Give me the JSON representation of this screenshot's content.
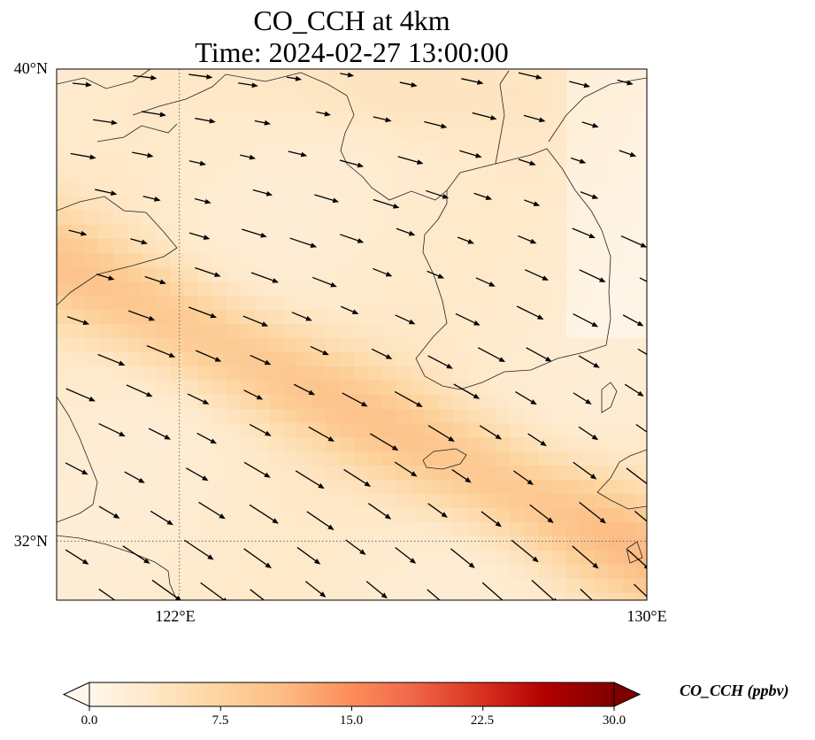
{
  "title": {
    "line1": "CO_CCH at 4km",
    "line2": "Time: 2024-02-27 13:00:00"
  },
  "axes": {
    "lat_labels": [
      {
        "value": 40,
        "text": "40°N"
      },
      {
        "value": 32,
        "text": "32°N"
      }
    ],
    "lon_labels": [
      {
        "value": 122,
        "text": "122°E"
      },
      {
        "value": 130,
        "text": "130°E"
      }
    ],
    "lon_range": [
      119.9,
      130.0
    ],
    "lat_range": [
      31.0,
      40.0
    ],
    "gridlines": "dotted"
  },
  "colorbar": {
    "title": "CO_CCH (ppbv)",
    "colormap": "OrRd",
    "ticks": [
      "0.0",
      "7.5",
      "15.0",
      "22.5",
      "30.0"
    ],
    "range": [
      0,
      30
    ],
    "extend": "both",
    "colors": [
      "#fff7ec",
      "#fee8c8",
      "#fdd49e",
      "#fdbb84",
      "#fc8d59",
      "#ef6548",
      "#d7301f",
      "#b30000",
      "#7f0000"
    ]
  },
  "field": {
    "description_values": "CO_CCH concentration in ppbv",
    "background": 3.0,
    "plume_band_peak": 9.5
  },
  "wind": {
    "dominant_direction": "west-northwest to east-southeast"
  }
}
